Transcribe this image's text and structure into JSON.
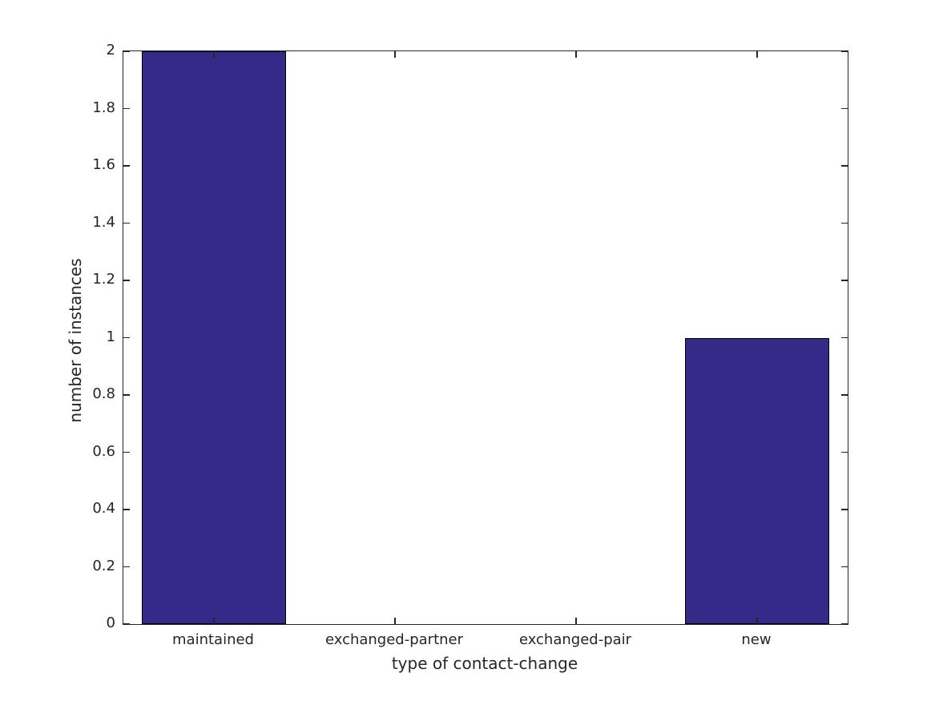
{
  "chart_data": {
    "type": "bar",
    "xlabel": "type of contact-change",
    "ylabel": "number of instances",
    "categories": [
      "maintained",
      "exchanged-partner",
      "exchanged-pair",
      "new"
    ],
    "values": [
      2,
      0,
      0,
      1
    ],
    "ylim": [
      0,
      2
    ],
    "yticks": [
      0,
      0.2,
      0.4,
      0.6,
      0.8,
      1,
      1.2,
      1.4,
      1.6,
      1.8,
      2
    ],
    "ytick_labels": [
      "0",
      "0.2",
      "0.4",
      "0.6",
      "0.8",
      "1",
      "1.2",
      "1.4",
      "1.6",
      "1.8",
      "2"
    ],
    "grid": false,
    "legend": null,
    "box": true,
    "tick_direction": "in",
    "bar_width_fraction": 0.8,
    "colors": {
      "bar_fill": "#352A87",
      "bar_edge": "#000000",
      "axis": "#262626",
      "text": "#262626",
      "background": "#ffffff"
    }
  }
}
